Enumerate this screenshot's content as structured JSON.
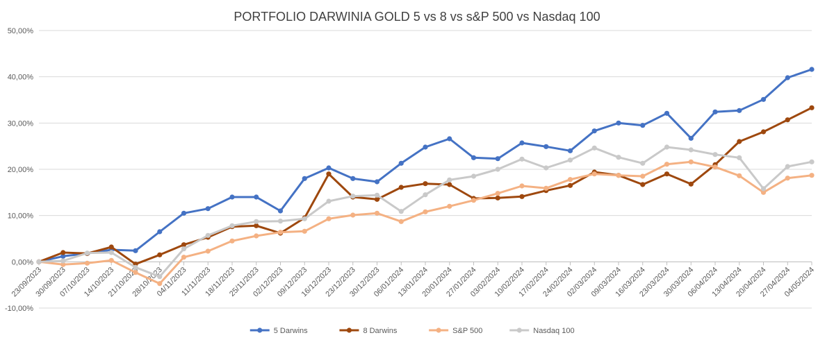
{
  "chart_data": {
    "type": "line",
    "title": "PORTFOLIO  DARWINIA GOLD 5 vs 8 vs s&P 500 vs Nasdaq 100",
    "xlabel": "",
    "ylabel": "",
    "ylim": [
      -10,
      50
    ],
    "y_ticks": [
      -10,
      0,
      10,
      20,
      30,
      40,
      50
    ],
    "y_tick_labels": [
      "-10,00%",
      "0,00%",
      "10,00%",
      "20,00%",
      "30,00%",
      "40,00%",
      "50,00%"
    ],
    "grid": true,
    "legend_position": "bottom",
    "categories": [
      "23/09/2023",
      "30/09/2023",
      "07/10/2023",
      "14/10/2023",
      "21/10/2023",
      "28/10/2023",
      "04/11/2023",
      "11/11/2023",
      "18/11/2023",
      "25/11/2023",
      "02/12/2023",
      "09/12/2023",
      "16/12/2023",
      "23/12/2023",
      "30/12/2023",
      "06/01/2024",
      "13/01/2024",
      "20/01/2024",
      "27/01/2024",
      "03/02/2024",
      "10/02/2024",
      "17/02/2024",
      "24/02/2024",
      "02/03/2024",
      "09/03/2024",
      "16/03/2024",
      "23/03/2024",
      "30/03/2024",
      "06/04/2024",
      "13/04/2024",
      "20/04/2024",
      "27/04/2024",
      "04/05/2024"
    ],
    "series": [
      {
        "name": "5 Darwins",
        "color": "#4472C4",
        "values": [
          0.0,
          1.2,
          1.8,
          2.6,
          2.4,
          6.5,
          10.5,
          11.5,
          14.0,
          14.0,
          11.0,
          18.0,
          20.3,
          18.0,
          17.3,
          21.3,
          24.8,
          26.6,
          22.5,
          22.3,
          25.7,
          24.9,
          24.0,
          28.3,
          30.0,
          29.5,
          32.1,
          26.7,
          32.4,
          32.7,
          35.1,
          39.8,
          41.6
        ]
      },
      {
        "name": "8 Darwins",
        "color": "#9E480E",
        "values": [
          0.0,
          2.0,
          1.8,
          3.2,
          -0.5,
          1.5,
          3.7,
          5.3,
          7.6,
          7.8,
          6.2,
          9.5,
          19.0,
          14.0,
          13.5,
          16.1,
          16.9,
          16.7,
          13.7,
          13.8,
          14.1,
          15.4,
          16.5,
          19.4,
          18.7,
          16.7,
          19.0,
          16.8,
          21.0,
          26.0,
          28.1,
          30.7,
          33.3
        ]
      },
      {
        "name": "S&P 500",
        "color": "#F4B183",
        "values": [
          0.0,
          -0.6,
          -0.3,
          0.3,
          -2.3,
          -4.7,
          1.0,
          2.3,
          4.5,
          5.6,
          6.4,
          6.6,
          9.3,
          10.1,
          10.5,
          8.7,
          10.8,
          12.0,
          13.3,
          14.8,
          16.4,
          15.9,
          17.8,
          19.0,
          18.7,
          18.5,
          21.1,
          21.6,
          20.5,
          18.6,
          15.0,
          18.1,
          18.7
        ]
      },
      {
        "name": "Nasdaq 100",
        "color": "#C9C9C9",
        "values": [
          0.0,
          0.2,
          1.9,
          2.0,
          -1.2,
          -3.2,
          2.8,
          5.7,
          7.8,
          8.7,
          8.8,
          9.3,
          13.1,
          14.2,
          14.4,
          10.9,
          14.5,
          17.7,
          18.5,
          20.0,
          22.2,
          20.3,
          22.0,
          24.6,
          22.6,
          21.3,
          24.8,
          24.2,
          23.2,
          22.5,
          15.8,
          20.6,
          21.6
        ]
      }
    ]
  }
}
